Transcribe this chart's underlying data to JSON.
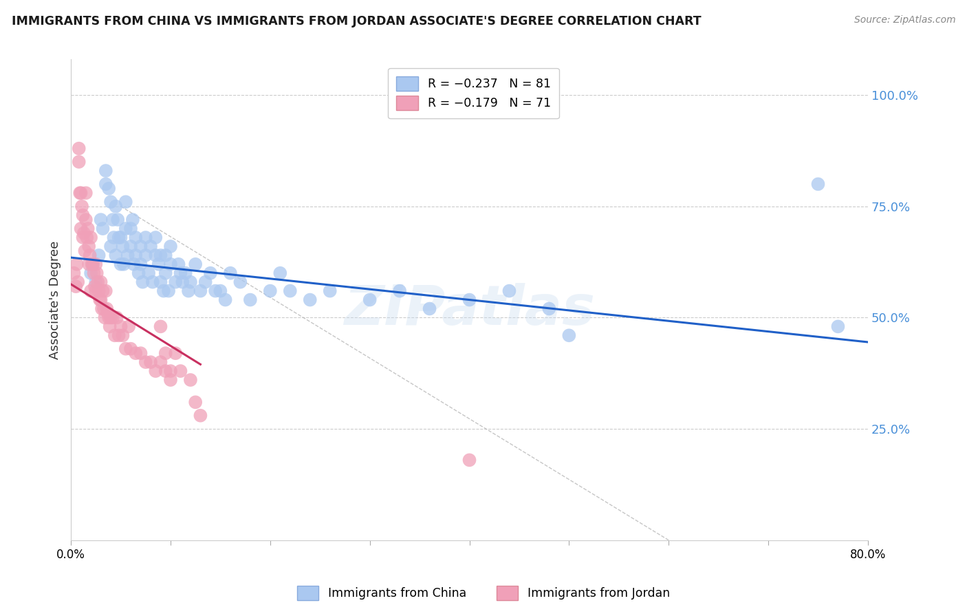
{
  "title": "IMMIGRANTS FROM CHINA VS IMMIGRANTS FROM JORDAN ASSOCIATE'S DEGREE CORRELATION CHART",
  "source": "Source: ZipAtlas.com",
  "ylabel": "Associate's Degree",
  "ytick_labels": [
    "100.0%",
    "75.0%",
    "50.0%",
    "25.0%"
  ],
  "ytick_values": [
    1.0,
    0.75,
    0.5,
    0.25
  ],
  "xtick_labels": [
    "0.0%",
    "",
    "",
    "",
    "",
    "",
    "",
    "",
    "80.0%"
  ],
  "xtick_values": [
    0.0,
    0.1,
    0.2,
    0.3,
    0.4,
    0.5,
    0.6,
    0.7,
    0.8
  ],
  "legend_china": "R = -0.237   N = 81",
  "legend_jordan": "R = -0.179   N = 71",
  "china_color": "#aac8f0",
  "jordan_color": "#f0a0b8",
  "china_line_color": "#2060c8",
  "jordan_line_color": "#c83060",
  "watermark": "ZIPatlas",
  "xmin": 0.0,
  "xmax": 0.8,
  "ymin": 0.0,
  "ymax": 1.08,
  "china_line_x0": 0.0,
  "china_line_y0": 0.635,
  "china_line_x1": 0.8,
  "china_line_y1": 0.445,
  "jordan_line_x0": 0.0,
  "jordan_line_y0": 0.575,
  "jordan_line_x1": 0.13,
  "jordan_line_y1": 0.395,
  "dashed_line_x0": 0.05,
  "dashed_line_y0": 0.75,
  "dashed_line_x1": 0.6,
  "dashed_line_y1": 0.0,
  "china_scatter_x": [
    0.02,
    0.022,
    0.025,
    0.028,
    0.03,
    0.032,
    0.035,
    0.035,
    0.038,
    0.04,
    0.04,
    0.042,
    0.043,
    0.045,
    0.045,
    0.047,
    0.048,
    0.05,
    0.05,
    0.052,
    0.053,
    0.055,
    0.055,
    0.057,
    0.06,
    0.06,
    0.062,
    0.063,
    0.065,
    0.065,
    0.068,
    0.07,
    0.07,
    0.072,
    0.075,
    0.075,
    0.078,
    0.08,
    0.082,
    0.085,
    0.085,
    0.088,
    0.09,
    0.09,
    0.093,
    0.095,
    0.095,
    0.098,
    0.1,
    0.1,
    0.105,
    0.108,
    0.11,
    0.112,
    0.115,
    0.118,
    0.12,
    0.125,
    0.13,
    0.135,
    0.14,
    0.145,
    0.15,
    0.155,
    0.16,
    0.17,
    0.18,
    0.2,
    0.21,
    0.22,
    0.24,
    0.26,
    0.3,
    0.33,
    0.36,
    0.4,
    0.44,
    0.48,
    0.5,
    0.75,
    0.77
  ],
  "china_scatter_y": [
    0.6,
    0.62,
    0.58,
    0.64,
    0.72,
    0.7,
    0.83,
    0.8,
    0.79,
    0.76,
    0.66,
    0.72,
    0.68,
    0.75,
    0.64,
    0.72,
    0.68,
    0.62,
    0.68,
    0.66,
    0.62,
    0.76,
    0.7,
    0.64,
    0.7,
    0.66,
    0.72,
    0.62,
    0.68,
    0.64,
    0.6,
    0.66,
    0.62,
    0.58,
    0.68,
    0.64,
    0.6,
    0.66,
    0.58,
    0.68,
    0.64,
    0.62,
    0.58,
    0.64,
    0.56,
    0.64,
    0.6,
    0.56,
    0.62,
    0.66,
    0.58,
    0.62,
    0.6,
    0.58,
    0.6,
    0.56,
    0.58,
    0.62,
    0.56,
    0.58,
    0.6,
    0.56,
    0.56,
    0.54,
    0.6,
    0.58,
    0.54,
    0.56,
    0.6,
    0.56,
    0.54,
    0.56,
    0.54,
    0.56,
    0.52,
    0.54,
    0.56,
    0.52,
    0.46,
    0.8,
    0.48
  ],
  "jordan_scatter_x": [
    0.003,
    0.005,
    0.006,
    0.007,
    0.008,
    0.008,
    0.009,
    0.01,
    0.01,
    0.011,
    0.012,
    0.012,
    0.013,
    0.014,
    0.015,
    0.015,
    0.016,
    0.017,
    0.018,
    0.018,
    0.019,
    0.02,
    0.02,
    0.021,
    0.022,
    0.023,
    0.024,
    0.025,
    0.025,
    0.026,
    0.027,
    0.028,
    0.029,
    0.03,
    0.03,
    0.031,
    0.032,
    0.033,
    0.034,
    0.035,
    0.036,
    0.037,
    0.038,
    0.039,
    0.04,
    0.042,
    0.044,
    0.046,
    0.048,
    0.05,
    0.052,
    0.055,
    0.058,
    0.06,
    0.065,
    0.07,
    0.075,
    0.08,
    0.085,
    0.09,
    0.095,
    0.1,
    0.105,
    0.11,
    0.12,
    0.125,
    0.13,
    0.09,
    0.095,
    0.1,
    0.4
  ],
  "jordan_scatter_y": [
    0.6,
    0.57,
    0.62,
    0.58,
    0.88,
    0.85,
    0.78,
    0.78,
    0.7,
    0.75,
    0.68,
    0.73,
    0.69,
    0.65,
    0.78,
    0.72,
    0.68,
    0.7,
    0.62,
    0.66,
    0.64,
    0.68,
    0.56,
    0.62,
    0.62,
    0.6,
    0.57,
    0.62,
    0.56,
    0.6,
    0.58,
    0.56,
    0.54,
    0.58,
    0.54,
    0.52,
    0.56,
    0.52,
    0.5,
    0.56,
    0.52,
    0.51,
    0.5,
    0.48,
    0.5,
    0.5,
    0.46,
    0.5,
    0.46,
    0.48,
    0.46,
    0.43,
    0.48,
    0.43,
    0.42,
    0.42,
    0.4,
    0.4,
    0.38,
    0.4,
    0.38,
    0.36,
    0.42,
    0.38,
    0.36,
    0.31,
    0.28,
    0.48,
    0.42,
    0.38,
    0.18
  ]
}
